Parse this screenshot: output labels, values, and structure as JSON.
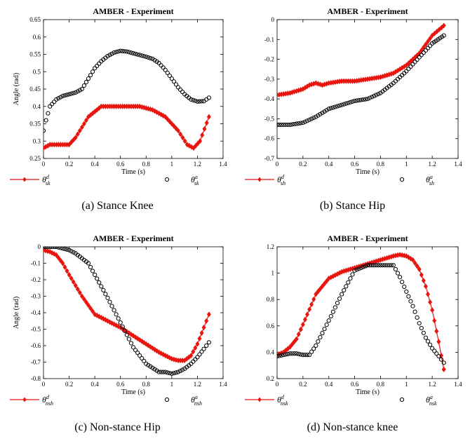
{
  "colors": {
    "desired": "#e8150f",
    "actual": "#000000"
  },
  "chart_data": [
    {
      "type": "scatter",
      "title": "AMBER - Experiment",
      "xlabel": "Time (s)",
      "ylabel": "Angle (rad)",
      "xlim": [
        0,
        1.4
      ],
      "ylim": [
        0.25,
        0.65
      ],
      "xticks": [
        "0",
        "0.2",
        "0.4",
        "0.6",
        "0.8",
        "1",
        "1.2",
        "1.4"
      ],
      "yticks": [
        "0.25",
        "0.3",
        "0.35",
        "0.4",
        "0.45",
        "0.5",
        "0.55",
        "0.6",
        "0.65"
      ],
      "caption": "(a) Stance Knee",
      "legend": [
        {
          "base": "θ",
          "sup": "d",
          "sub": "sk"
        },
        {
          "base": "θ",
          "sup": "a",
          "sub": "sk"
        }
      ],
      "series": [
        {
          "x": [
            0,
            0.05,
            0.1,
            0.2,
            0.25,
            0.3,
            0.35,
            0.45,
            0.55,
            0.65,
            0.75,
            0.85,
            0.95,
            1.05,
            1.12,
            1.17,
            1.22,
            1.29
          ],
          "y": [
            0.28,
            0.29,
            0.29,
            0.29,
            0.31,
            0.34,
            0.37,
            0.4,
            0.4,
            0.4,
            0.4,
            0.39,
            0.37,
            0.33,
            0.29,
            0.28,
            0.3,
            0.37
          ]
        },
        {
          "x": [
            0,
            0.02,
            0.05,
            0.1,
            0.15,
            0.2,
            0.25,
            0.3,
            0.35,
            0.4,
            0.45,
            0.5,
            0.55,
            0.6,
            0.65,
            0.7,
            0.75,
            0.8,
            0.85,
            0.9,
            0.95,
            1.0,
            1.05,
            1.1,
            1.15,
            1.2,
            1.25,
            1.29
          ],
          "y": [
            0.33,
            0.36,
            0.4,
            0.42,
            0.43,
            0.435,
            0.44,
            0.45,
            0.48,
            0.51,
            0.53,
            0.545,
            0.555,
            0.56,
            0.558,
            0.553,
            0.548,
            0.543,
            0.537,
            0.525,
            0.505,
            0.48,
            0.455,
            0.435,
            0.42,
            0.414,
            0.415,
            0.425
          ]
        }
      ]
    },
    {
      "type": "scatter",
      "title": "AMBER - Experiment",
      "xlabel": "Time (s)",
      "ylabel": "",
      "xlim": [
        0,
        1.4
      ],
      "ylim": [
        -0.7,
        0
      ],
      "xticks": [
        "0",
        "0.2",
        "0.4",
        "0.6",
        "0.8",
        "1",
        "1.2",
        "1.4"
      ],
      "yticks": [
        "-0.7",
        "-0.6",
        "-0.5",
        "-0.4",
        "-0.3",
        "-0.2",
        "-0.1",
        "0"
      ],
      "caption": "(b) Stance Hip",
      "legend": [
        {
          "base": "θ",
          "sup": "d",
          "sub": "sh"
        },
        {
          "base": "θ",
          "sup": "a",
          "sub": "sh"
        }
      ],
      "series": [
        {
          "x": [
            0,
            0.1,
            0.2,
            0.25,
            0.3,
            0.35,
            0.4,
            0.5,
            0.6,
            0.7,
            0.8,
            0.9,
            1.0,
            1.1,
            1.2,
            1.29
          ],
          "y": [
            -0.38,
            -0.37,
            -0.35,
            -0.33,
            -0.32,
            -0.33,
            -0.32,
            -0.31,
            -0.31,
            -0.3,
            -0.29,
            -0.27,
            -0.23,
            -0.17,
            -0.08,
            -0.03
          ]
        },
        {
          "x": [
            0,
            0.1,
            0.2,
            0.3,
            0.4,
            0.5,
            0.6,
            0.7,
            0.8,
            0.9,
            1.0,
            1.1,
            1.2,
            1.29
          ],
          "y": [
            -0.53,
            -0.53,
            -0.52,
            -0.49,
            -0.45,
            -0.43,
            -0.41,
            -0.4,
            -0.37,
            -0.32,
            -0.26,
            -0.19,
            -0.12,
            -0.08
          ]
        }
      ]
    },
    {
      "type": "scatter",
      "title": "AMBER - Experiment",
      "xlabel": "Time (s)",
      "ylabel": "Angle (rad)",
      "xlim": [
        0,
        1.4
      ],
      "ylim": [
        -0.8,
        0
      ],
      "xticks": [
        "0",
        "0.2",
        "0.4",
        "0.6",
        "0.8",
        "1",
        "1.2",
        "1.4"
      ],
      "yticks": [
        "-0.8",
        "-0.7",
        "-0.6",
        "-0.5",
        "-0.4",
        "-0.3",
        "-0.2",
        "-0.1",
        "0"
      ],
      "caption": "(c) Non-stance Hip",
      "legend": [
        {
          "base": "θ",
          "sup": "d",
          "sub": "nsh"
        },
        {
          "base": "θ",
          "sup": "a",
          "sub": "nsh"
        }
      ],
      "series": [
        {
          "x": [
            0,
            0.05,
            0.1,
            0.15,
            0.2,
            0.3,
            0.4,
            0.5,
            0.6,
            0.7,
            0.8,
            0.9,
            1.0,
            1.05,
            1.1,
            1.15,
            1.2,
            1.25,
            1.29
          ],
          "y": [
            -0.02,
            -0.03,
            -0.05,
            -0.1,
            -0.17,
            -0.3,
            -0.41,
            -0.45,
            -0.49,
            -0.54,
            -0.59,
            -0.64,
            -0.68,
            -0.69,
            -0.69,
            -0.66,
            -0.59,
            -0.49,
            -0.41
          ]
        },
        {
          "x": [
            0,
            0.05,
            0.1,
            0.15,
            0.2,
            0.25,
            0.3,
            0.35,
            0.4,
            0.5,
            0.6,
            0.7,
            0.8,
            0.9,
            0.95,
            1.0,
            1.05,
            1.1,
            1.15,
            1.2,
            1.25,
            1.29
          ],
          "y": [
            0,
            0,
            0,
            -0.01,
            -0.02,
            -0.04,
            -0.07,
            -0.1,
            -0.17,
            -0.31,
            -0.46,
            -0.61,
            -0.71,
            -0.76,
            -0.76,
            -0.77,
            -0.76,
            -0.74,
            -0.71,
            -0.67,
            -0.62,
            -0.58
          ]
        }
      ]
    },
    {
      "type": "scatter",
      "title": "AMBER - Experiment",
      "xlabel": "Time (s)",
      "ylabel": "",
      "xlim": [
        0,
        1.4
      ],
      "ylim": [
        0.2,
        1.2
      ],
      "xticks": [
        "0",
        "0.2",
        "0.4",
        "0.6",
        "0.8",
        "1",
        "1.2",
        "1.4"
      ],
      "yticks": [
        "0.2",
        "0.4",
        "0.6",
        "0.8",
        "1",
        "1.2"
      ],
      "caption": "(d) Non-stance knee",
      "legend": [
        {
          "base": "θ",
          "sup": "d",
          "sub": "nsk"
        },
        {
          "base": "θ",
          "sup": "a",
          "sub": "nsk"
        }
      ],
      "series": [
        {
          "x": [
            0,
            0.05,
            0.1,
            0.15,
            0.2,
            0.3,
            0.4,
            0.5,
            0.6,
            0.7,
            0.8,
            0.9,
            0.95,
            1.0,
            1.05,
            1.1,
            1.15,
            1.2,
            1.25,
            1.29
          ],
          "y": [
            0.38,
            0.4,
            0.44,
            0.5,
            0.61,
            0.84,
            0.96,
            1.01,
            1.04,
            1.07,
            1.1,
            1.13,
            1.14,
            1.13,
            1.1,
            1.03,
            0.9,
            0.72,
            0.48,
            0.27
          ]
        },
        {
          "x": [
            0,
            0.05,
            0.1,
            0.15,
            0.2,
            0.25,
            0.3,
            0.4,
            0.5,
            0.6,
            0.7,
            0.8,
            0.85,
            0.9,
            0.95,
            1.0,
            1.05,
            1.1,
            1.15,
            1.2,
            1.25,
            1.29
          ],
          "y": [
            0.37,
            0.38,
            0.39,
            0.39,
            0.38,
            0.38,
            0.45,
            0.64,
            0.84,
            1.02,
            1.06,
            1.06,
            1.06,
            1.06,
            0.97,
            0.86,
            0.75,
            0.62,
            0.51,
            0.43,
            0.37,
            0.32
          ]
        }
      ]
    }
  ]
}
